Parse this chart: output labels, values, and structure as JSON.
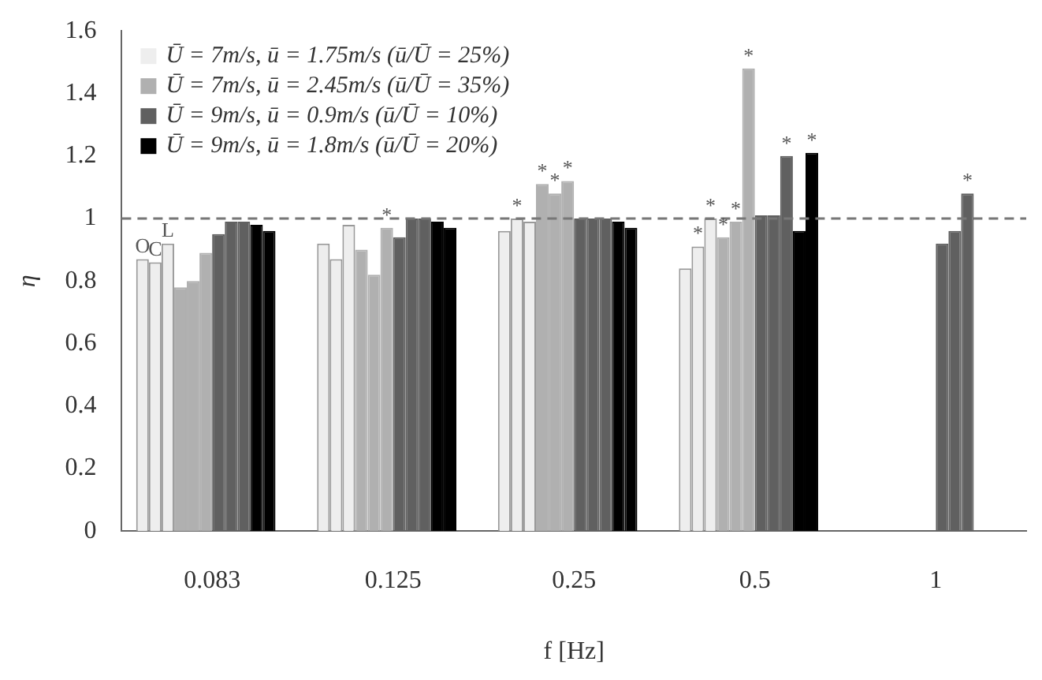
{
  "chart_data": {
    "type": "bar",
    "xlabel": "f [Hz]",
    "ylabel": "η",
    "categories": [
      "0.083",
      "0.125",
      "0.25",
      "0.5",
      "1"
    ],
    "ylim": [
      0,
      1.6
    ],
    "yticks": [
      0,
      0.2,
      0.4,
      0.6,
      0.8,
      1,
      1.2,
      1.4,
      1.6
    ],
    "grid": false,
    "legend": "top left",
    "ref_lines": [
      {
        "axis": "y",
        "value": 1,
        "color": "#777777",
        "line_style": "dashed"
      }
    ],
    "series": [
      {
        "name": "Ū = 7m/s, ū = 1.75m/s (ū/Ū = 25%)",
        "color": "#eeeeee",
        "values": [
          0.87,
          0.92,
          0.96,
          0.84,
          null
        ],
        "value_labels": [
          "O",
          null,
          null,
          null,
          null
        ]
      },
      {
        "color": "#eeeeee",
        "values": [
          0.86,
          0.87,
          1.0,
          0.91,
          null
        ],
        "value_labels": [
          "C",
          null,
          "*",
          "*",
          null
        ]
      },
      {
        "color": "#eeeeee",
        "values": [
          0.92,
          0.98,
          0.99,
          1.0,
          null
        ],
        "value_labels": [
          "L",
          null,
          null,
          "*",
          null
        ]
      },
      {
        "name": "Ū = 7m/s, ū = 2.45m/s (ū/Ū = 35%)",
        "color": "#b0b0b0",
        "values": [
          0.78,
          0.9,
          1.11,
          0.94,
          null
        ],
        "value_labels": [
          null,
          null,
          "*",
          "*",
          null
        ]
      },
      {
        "color": "#b0b0b0",
        "values": [
          0.8,
          0.82,
          1.08,
          0.99,
          null
        ],
        "value_labels": [
          null,
          null,
          "*",
          "*",
          null
        ]
      },
      {
        "color": "#b0b0b0",
        "values": [
          0.89,
          0.97,
          1.12,
          1.48,
          null
        ],
        "value_labels": [
          null,
          "*",
          "*",
          "*",
          null
        ]
      },
      {
        "name": "Ū = 9m/s, ū = 0.9m/s (ū/Ū = 10%)",
        "color": "#606060",
        "values": [
          0.95,
          0.94,
          1.0,
          1.01,
          0.92
        ],
        "value_labels": [
          null,
          null,
          null,
          null,
          null
        ]
      },
      {
        "color": "#606060",
        "values": [
          0.99,
          1.0,
          1.0,
          1.01,
          0.96
        ],
        "value_labels": [
          null,
          null,
          null,
          null,
          null
        ]
      },
      {
        "color": "#606060",
        "values": [
          0.99,
          1.0,
          1.0,
          1.2,
          1.08
        ],
        "value_labels": [
          null,
          null,
          null,
          "*",
          "*"
        ]
      },
      {
        "name": "Ū = 9m/s, ū = 1.8m/s (ū/Ū = 20%)",
        "color": "#000000",
        "values": [
          0.98,
          0.99,
          0.99,
          0.96,
          null
        ],
        "value_labels": [
          null,
          null,
          null,
          null,
          null
        ]
      },
      {
        "color": "#000000",
        "values": [
          0.96,
          0.97,
          0.97,
          1.21,
          null
        ],
        "value_labels": [
          null,
          null,
          null,
          "*",
          null
        ]
      },
      {
        "color": "#000000",
        "values": [
          null,
          null,
          null,
          null,
          null
        ]
      }
    ]
  }
}
